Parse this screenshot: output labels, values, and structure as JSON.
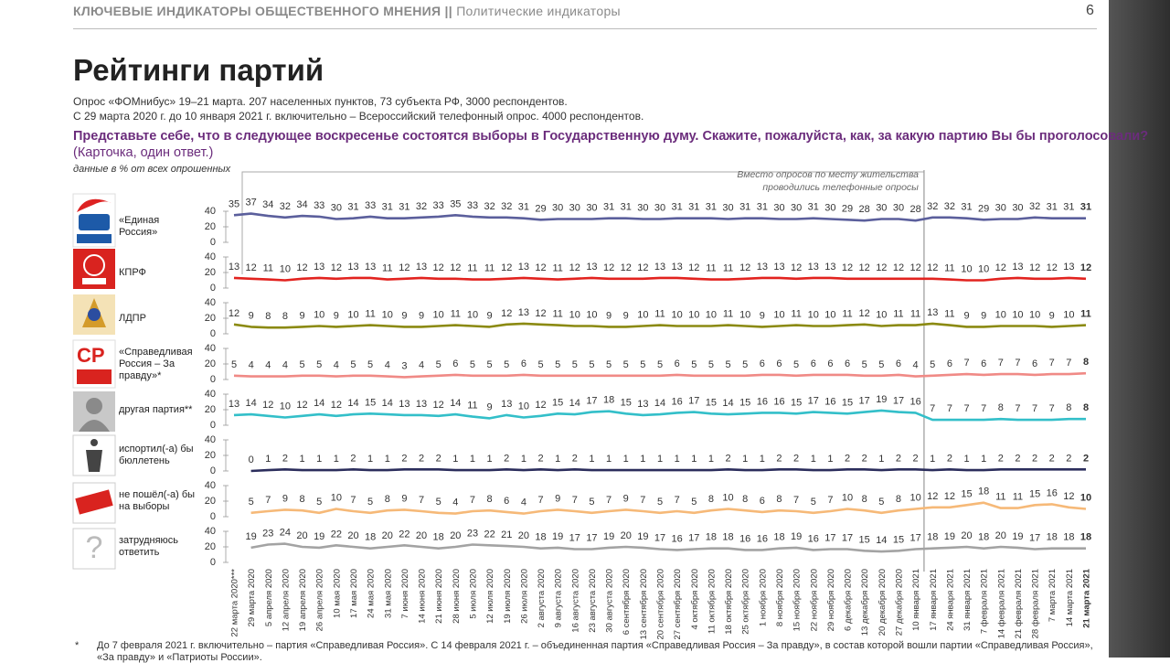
{
  "header": {
    "section": "КЛЮЧЕВЫЕ ИНДИКАТОРЫ ОБЩЕСТВЕННОГО МНЕНИЯ",
    "separator": "||",
    "subsection": "Политические индикаторы",
    "page": "6"
  },
  "title": "Рейтинги партий",
  "subtitle": [
    "Опрос «ФОМнибус» 19–21 марта. 207 населенных пунктов, 73 субъекта РФ, 3000 респондентов.",
    "С 29 марта 2020 г. до 10 января 2021 г. включительно – Всероссийский телефонный опрос. 4000 респондентов."
  ],
  "question": "Представьте себе, что в следующее воскресенье состоятся выборы в Государственную думу. Скажите, пожалуйста, как, за какую партию Вы бы проголосовали?",
  "card": "(Карточка, один ответ.)",
  "units": "данные в % от всех опрошенных",
  "chart_data": {
    "type": "line",
    "annotation": [
      "Вместо опросов по месту жительства",
      "проводились телефонные опросы"
    ],
    "categories": [
      "22 марта 2020***",
      "29 марта 2020",
      "5 апреля 2020",
      "12 апреля 2020",
      "19 апреля 2020",
      "26 апреля 2020",
      "10 мая 2020",
      "17 мая 2020",
      "24 мая 2020",
      "31 мая 2020",
      "7 июня 2020",
      "14 июня 2020",
      "21 июня 2020",
      "28 июня 2020",
      "5 июля 2020",
      "12 июля 2020",
      "19 июля 2020",
      "26 июля 2020",
      "2 августа 2020",
      "9 августа 2020",
      "16 августа 2020",
      "23 августа 2020",
      "30 августа 2020",
      "6 сентября 2020",
      "13 сентября 2020",
      "20 сентября 2020",
      "27 сентября 2020",
      "4 октября 2020",
      "11 октября 2020",
      "18 октября 2020",
      "25 октября 2020",
      "1 ноября 2020",
      "8 ноября 2020",
      "15 ноября 2020",
      "22 ноября 2020",
      "29 ноября 2020",
      "6 декабря 2020",
      "13 декабря 2020",
      "20 декабря 2020",
      "27 декабря 2020",
      "10 января 2021",
      "17 января 2021",
      "24 января 2021",
      "31 января 2021",
      "7 февраля 2021",
      "14 февраля 2021",
      "21 февраля 2021",
      "28 февраля 2021",
      "7 марта 2021",
      "14 марта 2021",
      "21 марта 2021"
    ],
    "ylim": [
      0,
      40
    ],
    "yticks": [
      0,
      20,
      40
    ],
    "series": [
      {
        "name": "«Единая Россия»",
        "color": "#5b5f9c",
        "values": [
          35,
          37,
          34,
          32,
          34,
          33,
          30,
          31,
          33,
          31,
          31,
          32,
          33,
          35,
          33,
          32,
          32,
          31,
          29,
          30,
          30,
          30,
          31,
          31,
          30,
          30,
          31,
          31,
          31,
          30,
          31,
          31,
          30,
          30,
          31,
          30,
          29,
          28,
          30,
          30,
          28,
          32,
          32,
          31,
          29,
          30,
          30,
          32,
          31,
          31,
          31
        ]
      },
      {
        "name": "КПРФ",
        "color": "#e2231f",
        "values": [
          13,
          12,
          11,
          10,
          12,
          13,
          12,
          13,
          13,
          11,
          12,
          13,
          12,
          12,
          11,
          11,
          12,
          13,
          12,
          11,
          12,
          13,
          12,
          12,
          12,
          13,
          13,
          12,
          11,
          11,
          12,
          13,
          13,
          12,
          13,
          13,
          12,
          12,
          12,
          12,
          12,
          12,
          11,
          10,
          10,
          12,
          13,
          12,
          12,
          13,
          12
        ]
      },
      {
        "name": "ЛДПР",
        "color": "#8b8a12",
        "values": [
          12,
          9,
          8,
          8,
          9,
          10,
          9,
          10,
          11,
          10,
          9,
          9,
          10,
          11,
          10,
          9,
          12,
          13,
          12,
          11,
          10,
          10,
          9,
          9,
          10,
          11,
          10,
          10,
          10,
          11,
          10,
          9,
          10,
          11,
          10,
          10,
          11,
          12,
          10,
          11,
          11,
          13,
          11,
          9,
          9,
          10,
          10,
          10,
          9,
          10,
          11
        ]
      },
      {
        "name": "«Справедливая Россия – За правду»*",
        "color": "#f08a86",
        "values": [
          5,
          4,
          4,
          4,
          5,
          5,
          4,
          5,
          5,
          4,
          3,
          4,
          5,
          6,
          5,
          5,
          5,
          6,
          5,
          5,
          5,
          5,
          5,
          5,
          5,
          5,
          6,
          5,
          5,
          5,
          5,
          6,
          6,
          5,
          6,
          6,
          6,
          5,
          5,
          6,
          4,
          5,
          6,
          7,
          6,
          7,
          7,
          6,
          7,
          7,
          8
        ]
      },
      {
        "name": "другая партия**",
        "color": "#33bfc9",
        "values": [
          13,
          14,
          12,
          10,
          12,
          14,
          12,
          14,
          15,
          14,
          13,
          13,
          12,
          14,
          11,
          9,
          13,
          10,
          12,
          15,
          14,
          17,
          18,
          15,
          13,
          14,
          16,
          17,
          15,
          14,
          15,
          16,
          16,
          15,
          17,
          16,
          15,
          17,
          19,
          17,
          16,
          7,
          7,
          7,
          7,
          8,
          7,
          7,
          7,
          8,
          8
        ]
      },
      {
        "name": "испортил(-а) бы бюллетень",
        "color": "#2b2d5c",
        "values": [
          null,
          0,
          1,
          2,
          1,
          1,
          1,
          2,
          1,
          1,
          2,
          2,
          2,
          1,
          1,
          1,
          2,
          1,
          2,
          1,
          2,
          1,
          1,
          1,
          1,
          1,
          1,
          1,
          1,
          2,
          1,
          1,
          2,
          2,
          1,
          1,
          2,
          2,
          1,
          2,
          2,
          1,
          2,
          1,
          1,
          2,
          2,
          2,
          2,
          2,
          2
        ]
      },
      {
        "name": "не пошёл(-а) бы на выборы",
        "color": "#f6b978",
        "values": [
          null,
          5,
          7,
          9,
          8,
          5,
          10,
          7,
          5,
          8,
          9,
          7,
          5,
          4,
          7,
          8,
          6,
          4,
          7,
          9,
          7,
          5,
          7,
          9,
          7,
          5,
          7,
          5,
          8,
          10,
          8,
          6,
          8,
          7,
          5,
          7,
          10,
          8,
          5,
          8,
          10,
          12,
          12,
          15,
          18,
          11,
          11,
          15,
          16,
          12,
          10
        ]
      },
      {
        "name": "затрудняюсь ответить",
        "color": "#a3a3a3",
        "values": [
          null,
          19,
          23,
          24,
          20,
          19,
          22,
          20,
          18,
          20,
          22,
          20,
          18,
          20,
          23,
          22,
          21,
          20,
          18,
          19,
          17,
          17,
          19,
          20,
          19,
          17,
          16,
          17,
          18,
          18,
          16,
          16,
          18,
          19,
          16,
          17,
          17,
          15,
          14,
          15,
          17,
          18,
          19,
          20,
          18,
          20,
          19,
          17,
          18,
          18,
          18
        ]
      }
    ]
  },
  "footnote": {
    "mark": "*",
    "lines": [
      "До 7 февраля 2021 г. включительно – партия «Справедливая Россия». С 14 февраля 2021 г. – объединенная партия «Справедливая Россия – За правду», в состав которой вошли партии «Справедливая Россия»,",
      "«За правду» и «Патриоты России»."
    ]
  }
}
